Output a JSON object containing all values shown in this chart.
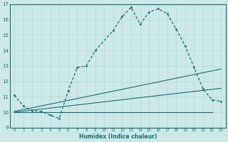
{
  "xlabel": "Humidex (Indice chaleur)",
  "xlim": [
    -0.5,
    23.5
  ],
  "ylim": [
    9,
    17
  ],
  "yticks": [
    9,
    10,
    11,
    12,
    13,
    14,
    15,
    16,
    17
  ],
  "xticks": [
    0,
    1,
    2,
    3,
    4,
    5,
    6,
    7,
    8,
    9,
    10,
    11,
    12,
    13,
    14,
    15,
    16,
    17,
    18,
    19,
    20,
    21,
    22,
    23
  ],
  "bg_color": "#cce8e8",
  "line_color": "#1a7070",
  "grid_color": "#b8d8d8",
  "curve1_x": [
    0,
    1,
    2,
    3,
    4,
    5,
    6,
    7,
    8,
    9,
    11,
    12,
    13,
    14,
    15,
    16,
    17,
    18,
    19,
    20,
    21,
    22,
    23
  ],
  "curve1_y": [
    11.1,
    10.4,
    10.1,
    10.05,
    9.8,
    9.6,
    11.4,
    12.9,
    13.0,
    14.0,
    15.3,
    16.2,
    16.8,
    15.7,
    16.5,
    16.7,
    16.4,
    15.4,
    14.3,
    12.9,
    11.5,
    10.8,
    10.7
  ],
  "line2_x": [
    0,
    23
  ],
  "line2_y": [
    10.05,
    12.8
  ],
  "line3_x": [
    0,
    23
  ],
  "line3_y": [
    10.0,
    11.55
  ],
  "line4_x": [
    0,
    22
  ],
  "line4_y": [
    10.0,
    10.0
  ]
}
